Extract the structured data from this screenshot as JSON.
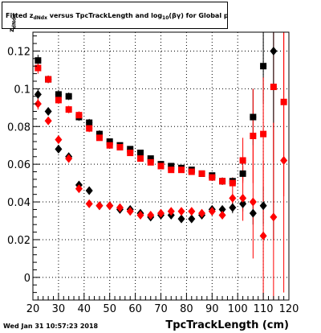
{
  "chart_data": {
    "type": "scatter",
    "title": "Fitted z",
    "title_sub": "dNdx",
    "title_mid": " versus TpcTrackLength and log",
    "title_sub2": "10",
    "title_end": "(βγ) for Global pion+",
    "ylabel": "z",
    "ylabel_sub": "dNdx",
    "xlabel": "TpcTrackLength (cm)",
    "xlim": [
      20,
      120
    ],
    "ylim": [
      -0.012,
      0.13
    ],
    "xticks": [
      20,
      30,
      40,
      50,
      60,
      70,
      80,
      90,
      100,
      110,
      120
    ],
    "yticks": [
      0,
      0.02,
      0.04,
      0.06,
      0.08,
      0.1,
      0.12
    ],
    "grid": true,
    "series": [
      {
        "marker": "square",
        "color": "#000000",
        "points": [
          {
            "x": 22,
            "y": 0.115,
            "e": 0.003
          },
          {
            "x": 26,
            "y": 0.105,
            "e": 0.002
          },
          {
            "x": 30,
            "y": 0.097,
            "e": 0.002
          },
          {
            "x": 34,
            "y": 0.096,
            "e": 0.002
          },
          {
            "x": 38,
            "y": 0.085,
            "e": 0.002
          },
          {
            "x": 42,
            "y": 0.082,
            "e": 0.002
          },
          {
            "x": 46,
            "y": 0.076,
            "e": 0.002
          },
          {
            "x": 50,
            "y": 0.072,
            "e": 0.001
          },
          {
            "x": 54,
            "y": 0.07,
            "e": 0.001
          },
          {
            "x": 58,
            "y": 0.068,
            "e": 0.001
          },
          {
            "x": 62,
            "y": 0.066,
            "e": 0.001
          },
          {
            "x": 66,
            "y": 0.063,
            "e": 0.001
          },
          {
            "x": 70,
            "y": 0.06,
            "e": 0.001
          },
          {
            "x": 74,
            "y": 0.059,
            "e": 0.001
          },
          {
            "x": 78,
            "y": 0.058,
            "e": 0.001
          },
          {
            "x": 82,
            "y": 0.057,
            "e": 0.001
          },
          {
            "x": 86,
            "y": 0.055,
            "e": 0.001
          },
          {
            "x": 90,
            "y": 0.054,
            "e": 0.001
          },
          {
            "x": 94,
            "y": 0.051,
            "e": 0.002
          },
          {
            "x": 98,
            "y": 0.051,
            "e": 0.002
          },
          {
            "x": 102,
            "y": 0.055,
            "e": 0.004
          },
          {
            "x": 106,
            "y": 0.085,
            "e": 0.015
          },
          {
            "x": 110,
            "y": 0.112,
            "e": 0.02
          }
        ]
      },
      {
        "marker": "square",
        "color": "#ff0000",
        "points": [
          {
            "x": 22,
            "y": 0.111,
            "e": 0.003
          },
          {
            "x": 26,
            "y": 0.105,
            "e": 0.002
          },
          {
            "x": 30,
            "y": 0.094,
            "e": 0.002
          },
          {
            "x": 34,
            "y": 0.089,
            "e": 0.002
          },
          {
            "x": 38,
            "y": 0.086,
            "e": 0.002
          },
          {
            "x": 42,
            "y": 0.079,
            "e": 0.002
          },
          {
            "x": 46,
            "y": 0.074,
            "e": 0.001
          },
          {
            "x": 50,
            "y": 0.07,
            "e": 0.001
          },
          {
            "x": 54,
            "y": 0.069,
            "e": 0.001
          },
          {
            "x": 58,
            "y": 0.066,
            "e": 0.001
          },
          {
            "x": 62,
            "y": 0.063,
            "e": 0.001
          },
          {
            "x": 66,
            "y": 0.061,
            "e": 0.001
          },
          {
            "x": 70,
            "y": 0.059,
            "e": 0.001
          },
          {
            "x": 74,
            "y": 0.057,
            "e": 0.001
          },
          {
            "x": 78,
            "y": 0.057,
            "e": 0.001
          },
          {
            "x": 82,
            "y": 0.056,
            "e": 0.001
          },
          {
            "x": 86,
            "y": 0.055,
            "e": 0.001
          },
          {
            "x": 90,
            "y": 0.053,
            "e": 0.001
          },
          {
            "x": 94,
            "y": 0.051,
            "e": 0.002
          },
          {
            "x": 98,
            "y": 0.05,
            "e": 0.003
          },
          {
            "x": 102,
            "y": 0.062,
            "e": 0.012
          },
          {
            "x": 106,
            "y": 0.075,
            "e": 0.025
          },
          {
            "x": 110,
            "y": 0.076,
            "e": 0.03
          },
          {
            "x": 114,
            "y": 0.101,
            "e": 0.04
          },
          {
            "x": 118,
            "y": 0.093,
            "e": 0.05
          }
        ]
      },
      {
        "marker": "diamond",
        "color": "#000000",
        "points": [
          {
            "x": 22,
            "y": 0.097,
            "e": 0.003
          },
          {
            "x": 26,
            "y": 0.088,
            "e": 0.002
          },
          {
            "x": 30,
            "y": 0.068,
            "e": 0.002
          },
          {
            "x": 34,
            "y": 0.064,
            "e": 0.002
          },
          {
            "x": 38,
            "y": 0.049,
            "e": 0.002
          },
          {
            "x": 42,
            "y": 0.046,
            "e": 0.002
          },
          {
            "x": 46,
            "y": 0.038,
            "e": 0.001
          },
          {
            "x": 50,
            "y": 0.038,
            "e": 0.001
          },
          {
            "x": 54,
            "y": 0.036,
            "e": 0.001
          },
          {
            "x": 58,
            "y": 0.036,
            "e": 0.001
          },
          {
            "x": 62,
            "y": 0.034,
            "e": 0.001
          },
          {
            "x": 66,
            "y": 0.032,
            "e": 0.001
          },
          {
            "x": 70,
            "y": 0.033,
            "e": 0.001
          },
          {
            "x": 74,
            "y": 0.033,
            "e": 0.001
          },
          {
            "x": 78,
            "y": 0.031,
            "e": 0.001
          },
          {
            "x": 82,
            "y": 0.031,
            "e": 0.001
          },
          {
            "x": 86,
            "y": 0.033,
            "e": 0.001
          },
          {
            "x": 90,
            "y": 0.036,
            "e": 0.002
          },
          {
            "x": 94,
            "y": 0.036,
            "e": 0.002
          },
          {
            "x": 98,
            "y": 0.037,
            "e": 0.003
          },
          {
            "x": 102,
            "y": 0.039,
            "e": 0.004
          },
          {
            "x": 106,
            "y": 0.034,
            "e": 0.006
          },
          {
            "x": 110,
            "y": 0.038,
            "e": 0.01
          },
          {
            "x": 114,
            "y": 0.12,
            "e": 0.1
          }
        ]
      },
      {
        "marker": "diamond",
        "color": "#ff0000",
        "points": [
          {
            "x": 22,
            "y": 0.092,
            "e": 0.003
          },
          {
            "x": 26,
            "y": 0.083,
            "e": 0.002
          },
          {
            "x": 30,
            "y": 0.073,
            "e": 0.002
          },
          {
            "x": 34,
            "y": 0.063,
            "e": 0.002
          },
          {
            "x": 38,
            "y": 0.047,
            "e": 0.002
          },
          {
            "x": 42,
            "y": 0.039,
            "e": 0.001
          },
          {
            "x": 46,
            "y": 0.038,
            "e": 0.001
          },
          {
            "x": 50,
            "y": 0.038,
            "e": 0.001
          },
          {
            "x": 54,
            "y": 0.037,
            "e": 0.001
          },
          {
            "x": 58,
            "y": 0.035,
            "e": 0.001
          },
          {
            "x": 62,
            "y": 0.033,
            "e": 0.001
          },
          {
            "x": 66,
            "y": 0.033,
            "e": 0.001
          },
          {
            "x": 70,
            "y": 0.034,
            "e": 0.001
          },
          {
            "x": 74,
            "y": 0.035,
            "e": 0.001
          },
          {
            "x": 78,
            "y": 0.035,
            "e": 0.001
          },
          {
            "x": 82,
            "y": 0.035,
            "e": 0.001
          },
          {
            "x": 86,
            "y": 0.034,
            "e": 0.001
          },
          {
            "x": 90,
            "y": 0.035,
            "e": 0.002
          },
          {
            "x": 94,
            "y": 0.033,
            "e": 0.002
          },
          {
            "x": 98,
            "y": 0.042,
            "e": 0.005
          },
          {
            "x": 102,
            "y": 0.042,
            "e": 0.012
          },
          {
            "x": 106,
            "y": 0.04,
            "e": 0.03
          },
          {
            "x": 110,
            "y": 0.022,
            "e": 0.04
          },
          {
            "x": 114,
            "y": 0.032,
            "e": 0.05
          },
          {
            "x": 118,
            "y": 0.062,
            "e": 0.07
          }
        ]
      }
    ]
  },
  "footer": {
    "timestamp": "Wed Jan 31 10:57:23 2018"
  }
}
